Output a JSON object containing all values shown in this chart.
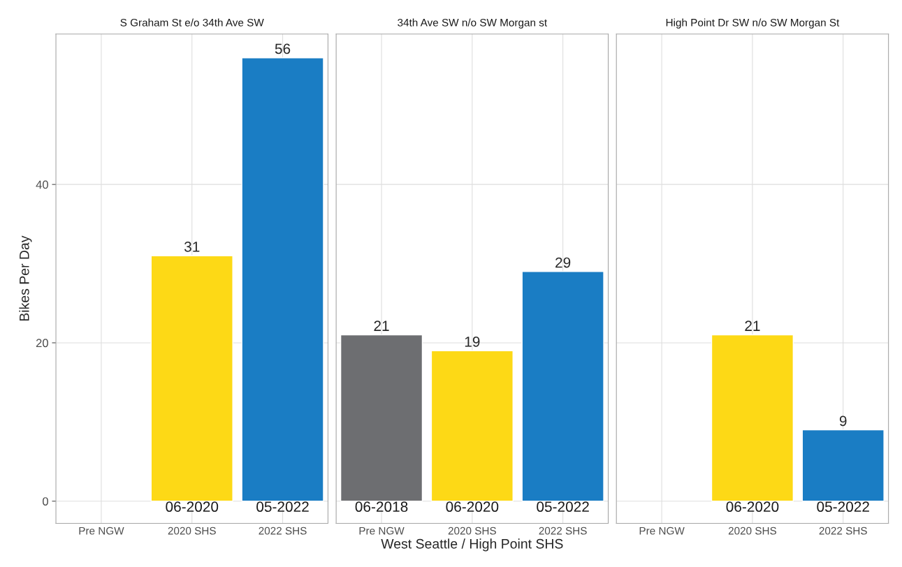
{
  "chart_data": [
    {
      "type": "bar",
      "title": "S Graham St e/o 34th Ave SW",
      "ylabel": "Bikes Per Day",
      "categories": [
        "Pre NGW",
        "2020 SHS",
        "2022 SHS"
      ],
      "values": [
        null,
        31,
        56
      ],
      "colors": [
        "#6d6e71",
        "#fdd916",
        "#1a7dc4"
      ],
      "ylim": [
        -2.8,
        59
      ],
      "yticks": [
        0,
        20,
        40
      ],
      "grid": true,
      "data_labels": true,
      "annotations": [
        {
          "text": "06-2020",
          "x": "2020 SHS",
          "y": 0
        },
        {
          "text": "05-2022",
          "x": "2022 SHS",
          "y": 0
        }
      ]
    },
    {
      "type": "bar",
      "title": "34th Ave SW n/o SW Morgan st",
      "xlabel": "West Seattle / High Point SHS",
      "categories": [
        "Pre NGW",
        "2020 SHS",
        "2022 SHS"
      ],
      "values": [
        21,
        19,
        29
      ],
      "colors": [
        "#6d6e71",
        "#fdd916",
        "#1a7dc4"
      ],
      "ylim": [
        -2.8,
        59
      ],
      "yticks": [
        0,
        20,
        40
      ],
      "grid": true,
      "data_labels": true,
      "tick_labels": "x",
      "annotations": [
        {
          "text": "06-2018",
          "x": "Pre NGW",
          "y": 0
        },
        {
          "text": "06-2020",
          "x": "2020 SHS",
          "y": 0
        },
        {
          "text": "05-2022",
          "x": "2022 SHS",
          "y": 0
        }
      ]
    },
    {
      "type": "bar",
      "title": "High Point Dr SW n/o SW Morgan St",
      "categories": [
        "Pre NGW",
        "2020 SHS",
        "2022 SHS"
      ],
      "values": [
        null,
        21,
        9
      ],
      "colors": [
        "#6d6e71",
        "#fdd916",
        "#1a7dc4"
      ],
      "ylim": [
        -2.8,
        59
      ],
      "yticks": [
        0,
        20,
        40
      ],
      "grid": true,
      "data_labels": true,
      "tick_labels": "x",
      "annotations": [
        {
          "text": "06-2020",
          "x": "2020 SHS",
          "y": 0
        },
        {
          "text": "05-2022",
          "x": "2022 SHS",
          "y": 0
        }
      ]
    }
  ]
}
